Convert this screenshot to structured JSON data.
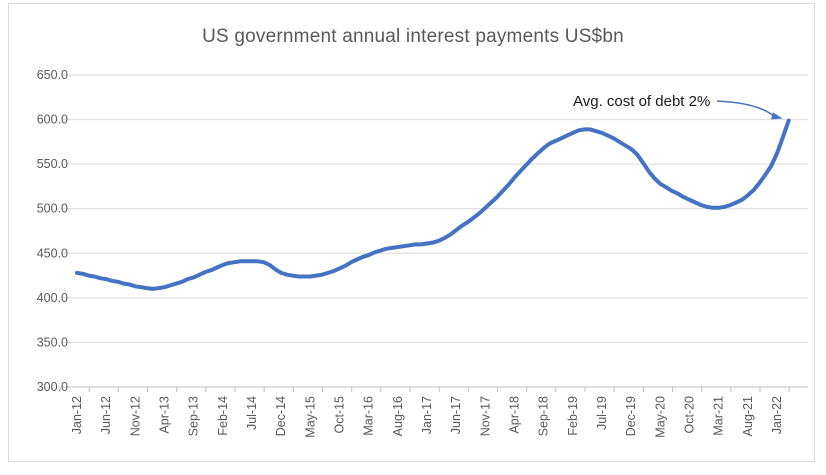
{
  "chart_data": {
    "type": "line",
    "title": "US government annual interest payments US$bn",
    "series_name": "US government annual interest payments (US$bn)",
    "x": [
      "Jan-12",
      "Feb-12",
      "Mar-12",
      "Apr-12",
      "May-12",
      "Jun-12",
      "Jul-12",
      "Aug-12",
      "Sep-12",
      "Oct-12",
      "Nov-12",
      "Dec-12",
      "Jan-13",
      "Feb-13",
      "Mar-13",
      "Apr-13",
      "May-13",
      "Jun-13",
      "Jul-13",
      "Aug-13",
      "Sep-13",
      "Oct-13",
      "Nov-13",
      "Dec-13",
      "Jan-14",
      "Feb-14",
      "Mar-14",
      "Apr-14",
      "May-14",
      "Jun-14",
      "Jul-14",
      "Aug-14",
      "Sep-14",
      "Oct-14",
      "Nov-14",
      "Dec-14",
      "Jan-15",
      "Feb-15",
      "Mar-15",
      "Apr-15",
      "May-15",
      "Jun-15",
      "Jul-15",
      "Aug-15",
      "Sep-15",
      "Oct-15",
      "Nov-15",
      "Dec-15",
      "Jan-16",
      "Feb-16",
      "Mar-16",
      "Apr-16",
      "May-16",
      "Jun-16",
      "Jul-16",
      "Aug-16",
      "Sep-16",
      "Oct-16",
      "Nov-16",
      "Dec-16",
      "Jan-17",
      "Feb-17",
      "Mar-17",
      "Apr-17",
      "May-17",
      "Jun-17",
      "Jul-17",
      "Aug-17",
      "Sep-17",
      "Oct-17",
      "Nov-17",
      "Dec-17",
      "Jan-18",
      "Feb-18",
      "Mar-18",
      "Apr-18",
      "May-18",
      "Jun-18",
      "Jul-18",
      "Aug-18",
      "Sep-18",
      "Oct-18",
      "Nov-18",
      "Dec-18",
      "Jan-19",
      "Feb-19",
      "Mar-19",
      "Apr-19",
      "May-19",
      "Jun-19",
      "Jul-19",
      "Aug-19",
      "Sep-19",
      "Oct-19",
      "Nov-19",
      "Dec-19",
      "Jan-20",
      "Feb-20",
      "Mar-20",
      "Apr-20",
      "May-20",
      "Jun-20",
      "Jul-20",
      "Aug-20",
      "Sep-20",
      "Oct-20",
      "Nov-20",
      "Dec-20",
      "Jan-21",
      "Feb-21",
      "Mar-21",
      "Apr-21",
      "May-21",
      "Jun-21",
      "Jul-21",
      "Aug-21",
      "Sep-21",
      "Oct-21",
      "Nov-21",
      "Dec-21",
      "Jan-22",
      "Feb-22",
      "Mar-22"
    ],
    "values": [
      428,
      427,
      425,
      424,
      422,
      421,
      419,
      418,
      416,
      415,
      413,
      412,
      411,
      410,
      411,
      412,
      414,
      416,
      418,
      421,
      423,
      426,
      429,
      431,
      434,
      437,
      439,
      440,
      441,
      441,
      441,
      441,
      440,
      437,
      432,
      428,
      426,
      425,
      424,
      424,
      424,
      425,
      426,
      428,
      430,
      433,
      436,
      440,
      443,
      446,
      448,
      451,
      453,
      455,
      456,
      457,
      458,
      459,
      460,
      460,
      461,
      462,
      464,
      467,
      471,
      476,
      481,
      485,
      490,
      495,
      501,
      507,
      513,
      520,
      527,
      535,
      542,
      549,
      556,
      562,
      568,
      573,
      576,
      579,
      582,
      585,
      588,
      589,
      589,
      587,
      585,
      582,
      579,
      575,
      571,
      567,
      561,
      552,
      542,
      534,
      528,
      524,
      520,
      517,
      513,
      510,
      507,
      504,
      502,
      501,
      501,
      502,
      504,
      507,
      510,
      515,
      521,
      529,
      538,
      548,
      562,
      580,
      599
    ],
    "x_tick_labels": [
      "Jan-12",
      "Jun-12",
      "Nov-12",
      "Apr-13",
      "Sep-13",
      "Feb-14",
      "Jul-14",
      "Dec-14",
      "May-15",
      "Oct-15",
      "Mar-16",
      "Aug-16",
      "Jan-17",
      "Jun-17",
      "Nov-17",
      "Apr-18",
      "Sep-18",
      "Feb-19",
      "Jul-19",
      "Dec-19",
      "May-20",
      "Oct-20",
      "Mar-21",
      "Aug-21",
      "Jan-22"
    ],
    "x_tick_every": 5,
    "y_tick_labels": [
      "650.0",
      "600.0",
      "550.0",
      "500.0",
      "450.0",
      "400.0",
      "350.0",
      "300.0"
    ],
    "ylim": [
      300,
      650
    ],
    "y_tick_step": 50,
    "grid": true,
    "legend": "none",
    "annotation": {
      "text": "Avg. cost of debt 2%"
    },
    "colors": {
      "line": "#4472C4",
      "arrow": "#4472C4",
      "grid": "#D9D9D9",
      "axis": "#BFBFBF",
      "tick": "#BFBFBF",
      "axis_label": "#595959",
      "title": "#595959",
      "annotation_text": "#1a1a1a",
      "background": "#FFFFFF",
      "border": "#D9D9D9"
    }
  }
}
